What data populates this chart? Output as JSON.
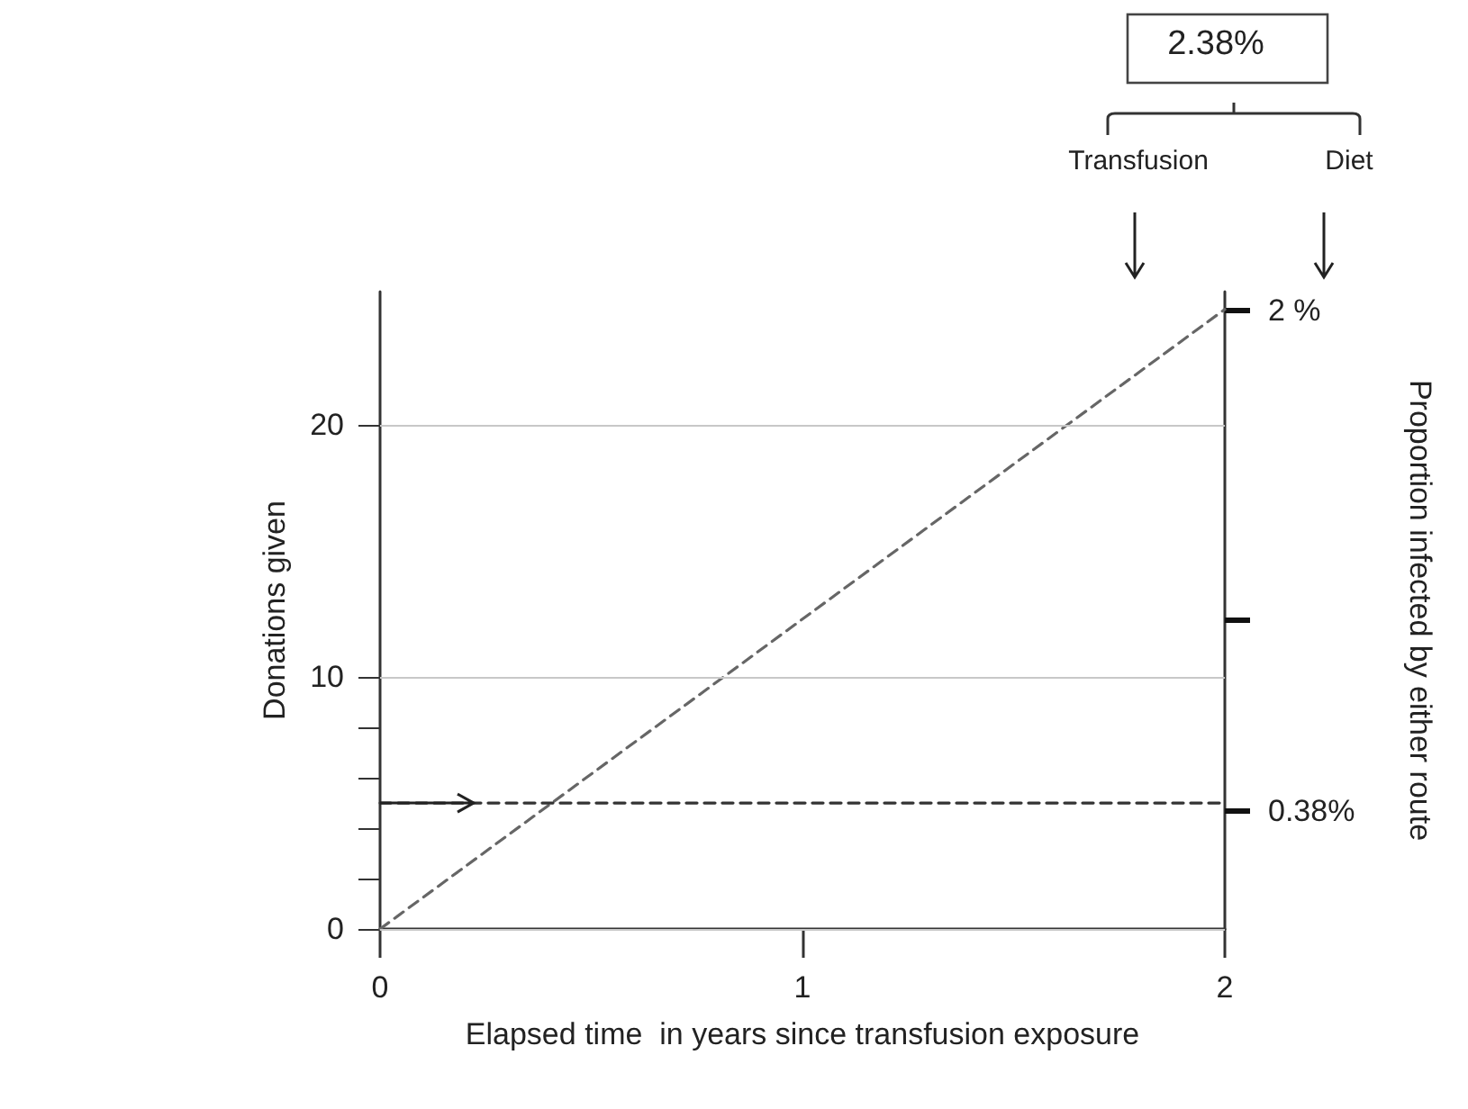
{
  "chart_data": {
    "type": "line",
    "xlabel": "Elapsed time  in years since transfusion exposure",
    "ylabel": "Donations given",
    "y2label": "Proportion infected by either route",
    "annotations": [
      "2.38%",
      "Transfusion",
      "Diet"
    ],
    "series": [
      {
        "values": [
          0,
          24.6
        ],
        "color": "#666666"
      },
      {
        "values": [
          5,
          5
        ],
        "color": "#333333"
      }
    ],
    "x": [
      0,
      2
    ],
    "xlim": [
      0,
      2
    ],
    "xticks": [
      0,
      1,
      2
    ],
    "ylim": [
      0,
      25.3
    ],
    "yticks": [
      0,
      {
        "value": 2,
        "label": null
      },
      {
        "value": 4,
        "label": null
      },
      {
        "value": 6,
        "label": null
      },
      {
        "value": 8,
        "label": null
      },
      10,
      20
    ],
    "y2lim": [
      0,
      2.06
    ],
    "y2ticks": [
      {
        "value": 0.38,
        "label": "0.38%"
      },
      {
        "value": 1,
        "label": null
      },
      {
        "value": 2,
        "label": "2 %"
      }
    ],
    "grid": "y",
    "marker": "none",
    "line_style": "dashed"
  }
}
